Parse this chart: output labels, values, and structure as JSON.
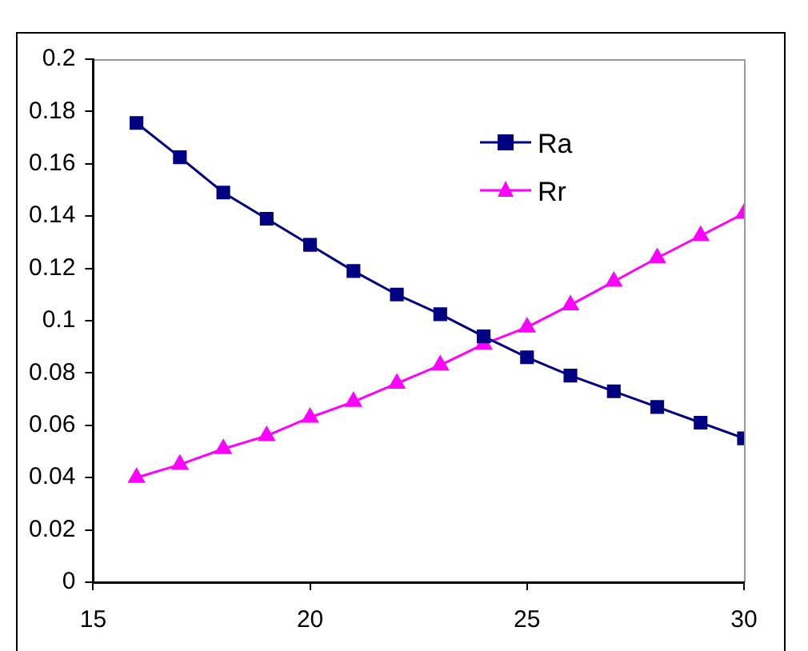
{
  "chart_data": {
    "type": "line",
    "x": [
      16,
      17,
      18,
      19,
      20,
      21,
      22,
      23,
      24,
      25,
      26,
      27,
      28,
      29,
      30
    ],
    "series": [
      {
        "name": "Ra",
        "color": "#000080",
        "marker": "square",
        "values": [
          0.1756,
          0.1625,
          0.149,
          0.139,
          0.129,
          0.119,
          0.11,
          0.1025,
          0.094,
          0.086,
          0.079,
          0.073,
          0.067,
          0.061,
          0.055
        ]
      },
      {
        "name": "Rr",
        "color": "#ff00ff",
        "marker": "triangle",
        "values": [
          0.04,
          0.045,
          0.051,
          0.056,
          0.063,
          0.069,
          0.076,
          0.083,
          0.091,
          0.0975,
          0.106,
          0.115,
          0.124,
          0.1325,
          0.141
        ]
      }
    ],
    "xlim": [
      15,
      30
    ],
    "xticks": [
      15,
      20,
      25,
      30
    ],
    "ylim": [
      0,
      0.2
    ],
    "yticks": [
      0,
      0.02,
      0.04,
      0.06,
      0.08,
      0.1,
      0.12,
      0.14,
      0.16,
      0.18,
      0.2
    ],
    "grid": false,
    "legend": "top right",
    "line_style": "solid"
  }
}
